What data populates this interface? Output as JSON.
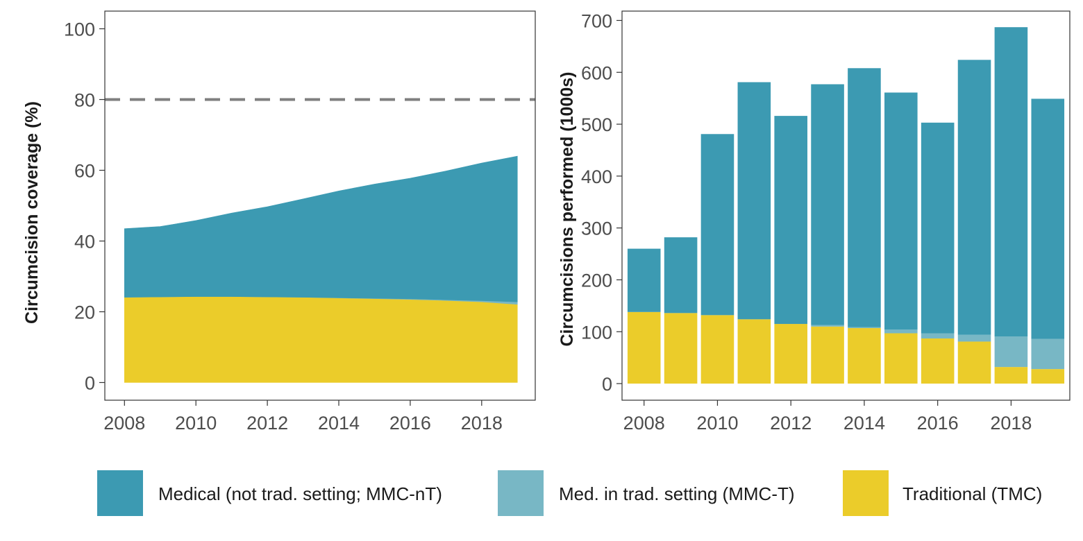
{
  "colors": {
    "mmc_nt": "#3c9ab2",
    "mmc_t": "#78b7c5",
    "tmc": "#ebcc2a",
    "target_line": "#7f7f7f"
  },
  "chart_data": [
    {
      "type": "area",
      "stacked": true,
      "title": "",
      "xlabel": "",
      "ylabel": "Circumcision coverage (%)",
      "xlim": [
        2007.45,
        2019.5
      ],
      "ylim": [
        -5,
        105
      ],
      "xticks": [
        2008,
        2010,
        2012,
        2014,
        2016,
        2018
      ],
      "yticks": [
        0,
        20,
        40,
        60,
        80,
        100
      ],
      "x": [
        2008,
        2009,
        2010,
        2011,
        2012,
        2013,
        2014,
        2015,
        2016,
        2017,
        2018,
        2019
      ],
      "reference_line": {
        "y": 80,
        "style": "dashed"
      },
      "grid": false,
      "series": [
        {
          "name": "Traditional (TMC)",
          "color_key": "tmc",
          "values": [
            24.1,
            24.2,
            24.3,
            24.3,
            24.2,
            24.1,
            23.9,
            23.7,
            23.5,
            23.2,
            22.8,
            22.1
          ]
        },
        {
          "name": "Med. in trad. setting (MMC-T)",
          "color_key": "mmc_t",
          "values": [
            0.0,
            0.0,
            0.0,
            0.0,
            0.0,
            0.0,
            0.05,
            0.1,
            0.15,
            0.2,
            0.35,
            0.7
          ]
        },
        {
          "name": "Medical (not trad. setting; MMC-nT)",
          "color_key": "mmc_nt",
          "values": [
            19.4,
            19.9,
            21.5,
            23.6,
            25.5,
            27.8,
            30.2,
            32.3,
            34.1,
            36.4,
            38.9,
            41.2
          ]
        }
      ]
    },
    {
      "type": "bar",
      "stacked": true,
      "title": "",
      "xlabel": "",
      "ylabel": "Circumcisions performed (1000s)",
      "xlim": [
        2007.4,
        2019.6
      ],
      "ylim": [
        -32,
        718
      ],
      "xticks": [
        2008,
        2010,
        2012,
        2014,
        2016,
        2018
      ],
      "yticks": [
        0,
        100,
        200,
        300,
        400,
        500,
        600,
        700
      ],
      "categories": [
        2008,
        2009,
        2010,
        2011,
        2012,
        2013,
        2014,
        2015,
        2016,
        2017,
        2018,
        2019
      ],
      "grid": false,
      "series": [
        {
          "name": "Traditional (TMC)",
          "color_key": "tmc",
          "values": [
            138,
            136,
            132,
            124,
            115,
            110,
            107,
            97,
            87,
            81,
            32,
            28
          ]
        },
        {
          "name": "Med. in trad. setting (MMC-T)",
          "color_key": "mmc_t",
          "values": [
            0,
            0,
            0,
            0,
            0,
            3,
            2,
            7,
            10,
            13,
            59,
            58
          ]
        },
        {
          "name": "Medical (not trad. setting; MMC-nT)",
          "color_key": "mmc_nt",
          "values": [
            122,
            146,
            349,
            457,
            401,
            464,
            499,
            457,
            406,
            530,
            596,
            463
          ]
        }
      ]
    }
  ],
  "legend": {
    "placement": "bottom",
    "items": [
      {
        "label": "Medical (not trad. setting; MMC-nT)",
        "color_key": "mmc_nt"
      },
      {
        "label": "Med. in trad. setting (MMC-T)",
        "color_key": "mmc_t"
      },
      {
        "label": "Traditional (TMC)",
        "color_key": "tmc"
      }
    ]
  }
}
